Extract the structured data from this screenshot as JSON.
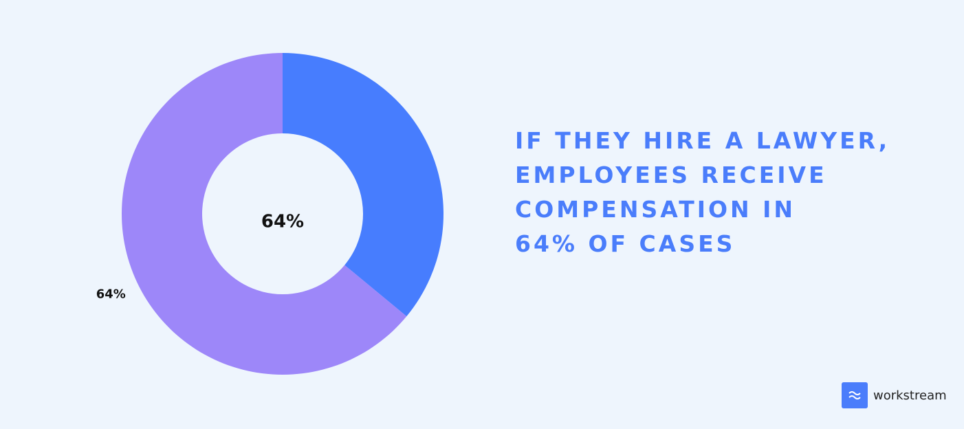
{
  "chart_data": {
    "type": "donut",
    "values": [
      36,
      64
    ],
    "value_labels": [
      null,
      "64%"
    ],
    "colors": [
      "#477dfe",
      "#9d87f9"
    ],
    "center_label": "64%",
    "title_lines": [
      "IF THEY HIRE A LAWYER,",
      "EMPLOYEES RECEIVE",
      "COMPENSATION IN",
      "64% OF CASES"
    ]
  },
  "brand": "workstream"
}
